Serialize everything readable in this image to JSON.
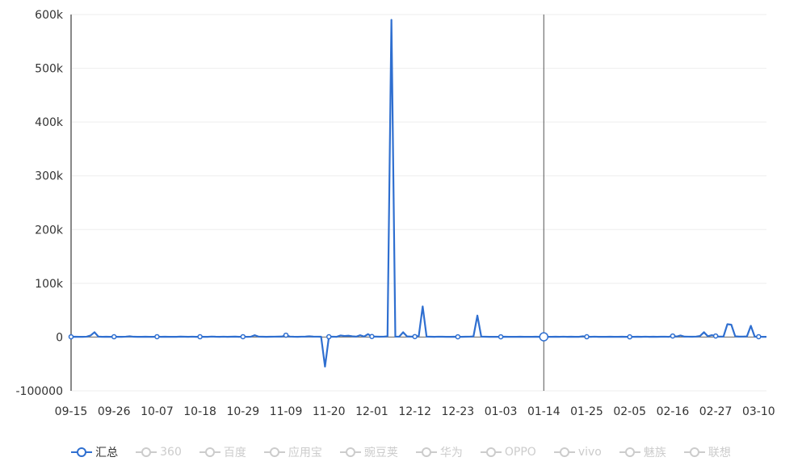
{
  "chart_data": {
    "type": "line",
    "categories": [
      "09-15",
      null,
      null,
      null,
      null,
      null,
      null,
      null,
      null,
      null,
      null,
      "09-26",
      null,
      null,
      null,
      null,
      null,
      null,
      null,
      null,
      null,
      null,
      "10-07",
      null,
      null,
      null,
      null,
      null,
      null,
      null,
      null,
      null,
      null,
      "10-18",
      null,
      null,
      null,
      null,
      null,
      null,
      null,
      null,
      null,
      null,
      "10-29",
      null,
      null,
      null,
      null,
      null,
      null,
      null,
      null,
      null,
      null,
      "11-09",
      null,
      null,
      null,
      null,
      null,
      null,
      null,
      null,
      null,
      null,
      "11-20",
      null,
      null,
      null,
      null,
      null,
      null,
      null,
      null,
      null,
      null,
      "12-01",
      null,
      null,
      null,
      null,
      null,
      null,
      null,
      null,
      null,
      null,
      "12-12",
      null,
      null,
      null,
      null,
      null,
      null,
      null,
      null,
      null,
      null,
      "12-23",
      null,
      null,
      null,
      null,
      null,
      null,
      null,
      null,
      null,
      null,
      "01-03",
      null,
      null,
      null,
      null,
      null,
      null,
      null,
      null,
      null,
      null,
      "01-14",
      null,
      null,
      null,
      null,
      null,
      null,
      null,
      null,
      null,
      null,
      "01-25",
      null,
      null,
      null,
      null,
      null,
      null,
      null,
      null,
      null,
      null,
      "02-05",
      null,
      null,
      null,
      null,
      null,
      null,
      null,
      null,
      null,
      null,
      "02-16",
      null,
      null,
      null,
      null,
      null,
      null,
      null,
      null,
      null,
      null,
      "02-27",
      null,
      null,
      null,
      null,
      null,
      null,
      null,
      null,
      null,
      null,
      "03-10",
      null,
      null
    ],
    "series": [
      {
        "name": "汇总",
        "color": "#2f6fd0",
        "values": [
          500,
          600,
          500,
          400,
          700,
          3000,
          9000,
          800,
          500,
          600,
          500,
          600,
          500,
          500,
          700,
          1500,
          600,
          500,
          500,
          600,
          500,
          500,
          700,
          500,
          600,
          500,
          400,
          500,
          800,
          600,
          500,
          700,
          500,
          600,
          500,
          500,
          900,
          600,
          500,
          700,
          500,
          600,
          800,
          500,
          700,
          500,
          600,
          3500,
          800,
          600,
          500,
          600,
          700,
          800,
          1000,
          3500,
          900,
          600,
          500,
          700,
          800,
          1500,
          800,
          700,
          600,
          -55000,
          600,
          700,
          500,
          3000,
          2000,
          2500,
          1500,
          800,
          3500,
          900,
          5500,
          1000,
          800,
          600,
          700,
          1500,
          590000,
          700,
          800,
          9000,
          1200,
          800,
          900,
          2000,
          57000,
          800,
          600,
          500,
          700,
          600,
          500,
          400,
          600,
          500,
          500,
          600,
          700,
          1200,
          40000,
          800,
          600,
          500,
          400,
          500,
          500,
          600,
          500,
          400,
          500,
          600,
          500,
          400,
          500,
          600,
          500,
          500,
          400,
          500,
          600,
          500,
          700,
          500,
          600,
          500,
          500,
          1500,
          600,
          500,
          700,
          500,
          400,
          500,
          600,
          500,
          500,
          600,
          500,
          400,
          500,
          600,
          500,
          700,
          500,
          600,
          500,
          600,
          700,
          500,
          2000,
          1000,
          3000,
          800,
          700,
          600,
          900,
          2000,
          9000,
          1500,
          3500,
          2000,
          800,
          1000,
          24000,
          23000,
          1500,
          800,
          900,
          1200,
          21000,
          600,
          700,
          500,
          400
        ]
      }
    ],
    "hidden_series": [
      {
        "name": "360"
      },
      {
        "name": "百度"
      },
      {
        "name": "应用宝"
      },
      {
        "name": "豌豆荚"
      },
      {
        "name": "华为"
      },
      {
        "name": "OPPO"
      },
      {
        "name": "vivo"
      },
      {
        "name": "魅族"
      },
      {
        "name": "联想"
      }
    ],
    "ylim": [
      -100000,
      600000
    ],
    "yticks": [
      -100000,
      0,
      {
        "value": 100000,
        "label": "100k"
      },
      {
        "value": 200000,
        "label": "200k"
      },
      {
        "value": 300000,
        "label": "300k"
      },
      {
        "value": 400000,
        "label": "400k"
      },
      {
        "value": 500000,
        "label": "500k"
      },
      {
        "value": 600000,
        "label": "600k"
      }
    ],
    "grid": true
  }
}
